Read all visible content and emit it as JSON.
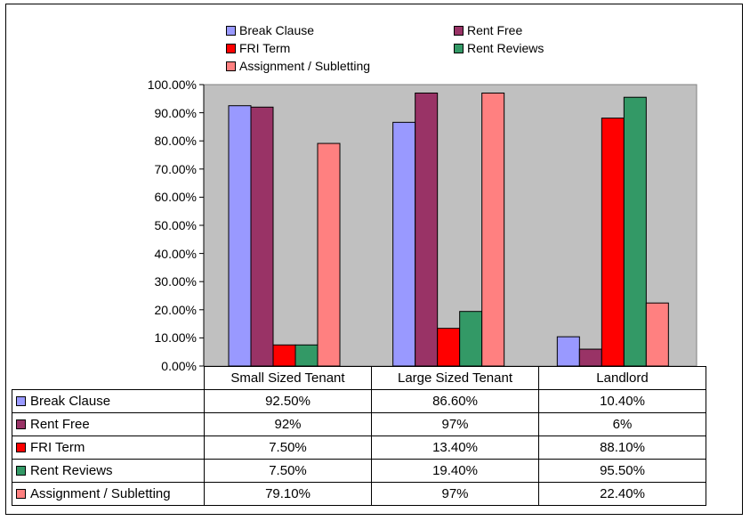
{
  "chart_data": {
    "type": "bar",
    "categories": [
      "Small Sized Tenant",
      "Large Sized Tenant",
      "Landlord"
    ],
    "series": [
      {
        "name": "Break Clause",
        "values": [
          92.5,
          86.6,
          10.4
        ],
        "labels": [
          "92.50%",
          "86.60%",
          "10.40%"
        ],
        "color": "#9999ff"
      },
      {
        "name": "Rent Free",
        "values": [
          92,
          97,
          6
        ],
        "labels": [
          "92%",
          "97%",
          "6%"
        ],
        "color": "#993366"
      },
      {
        "name": "FRI Term",
        "values": [
          7.5,
          13.4,
          88.1
        ],
        "labels": [
          "7.50%",
          "13.40%",
          "88.10%"
        ],
        "color": "#ff0000"
      },
      {
        "name": "Rent Reviews",
        "values": [
          7.5,
          19.4,
          95.5
        ],
        "labels": [
          "7.50%",
          "19.40%",
          "95.50%"
        ],
        "color": "#339966"
      },
      {
        "name": "Assignment / Subletting",
        "values": [
          79.1,
          97,
          22.4
        ],
        "labels": [
          "79.10%",
          "97%",
          "22.40%"
        ],
        "color": "#ff8080"
      }
    ],
    "ylim": [
      0,
      100
    ],
    "yticks": [
      "0.00%",
      "10.00%",
      "20.00%",
      "30.00%",
      "40.00%",
      "50.00%",
      "60.00%",
      "70.00%",
      "80.00%",
      "90.00%",
      "100.00%"
    ],
    "grid": false,
    "plot_background": "#c0c0c0",
    "legend_position": "top",
    "data_table": true
  }
}
